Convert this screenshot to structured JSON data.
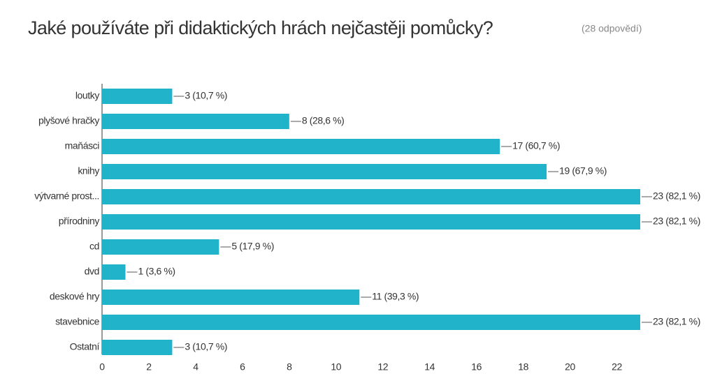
{
  "chart_data": {
    "type": "barh",
    "title": "Jaké používáte při didaktických hrách nejčastěji pomůcky?",
    "subtitle": "(28 odpovědí)",
    "categories": [
      "loutky",
      "plyšové hračky",
      "maňásci",
      "knihy",
      "výtvarné prost...",
      "přírodniny",
      "cd",
      "dvd",
      "deskové hry",
      "stavebnice",
      "Ostatní"
    ],
    "values": [
      3,
      8,
      17,
      19,
      23,
      23,
      5,
      1,
      11,
      23,
      3
    ],
    "value_labels": [
      "3 (10,7 %)",
      "8 (28,6 %)",
      "17 (60,7 %)",
      "19 (67,9 %)",
      "23 (82,1 %)",
      "23 (82,1 %)",
      "5 (17,9 %)",
      "1 (3,6 %)",
      "11 (39,3 %)",
      "23 (82,1 %)",
      "3 (10,7 %)"
    ],
    "color": "#21b3c9",
    "xlim": [
      0,
      23
    ],
    "xticks": [
      0,
      2,
      4,
      6,
      8,
      10,
      12,
      14,
      16,
      18,
      20,
      22
    ]
  }
}
